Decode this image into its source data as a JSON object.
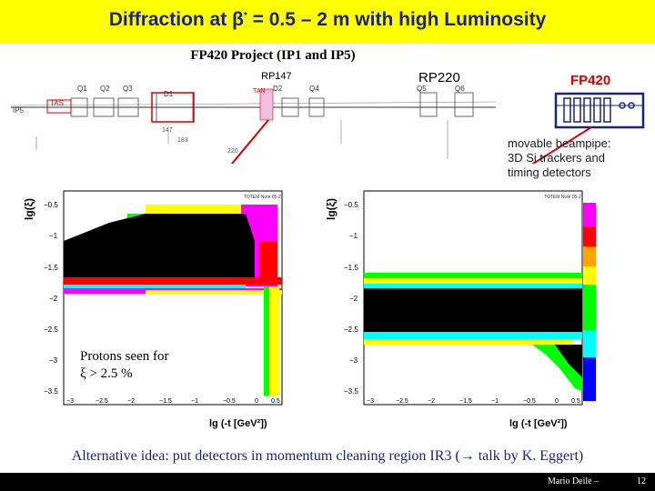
{
  "title": {
    "prefix": "Diffraction at ",
    "beta": "β",
    "star": "*",
    "suffix": " = 0.5 – 2 m with high Luminosity"
  },
  "subtitle": "FP420 Project (IP1 and IP5)",
  "beamline": {
    "rp147": "RP147",
    "rp220": "RP220",
    "fp420": "FP420",
    "elements": [
      "Q1",
      "Q2",
      "Q3",
      "D1",
      "TAN",
      "D2",
      "Q4",
      "Q5",
      "Q6",
      "TAS",
      "IP5"
    ],
    "distances": [
      "147",
      "183",
      "220"
    ]
  },
  "note": [
    "movable beampipe:",
    "3D Si trackers and",
    "timing detectors"
  ],
  "plot_left": {
    "ylabel": "lg(ξ)",
    "xlabel": "lg (-t  [GeV²])",
    "inset": "TOTEM Note 05-2",
    "yticks": [
      "−0.5",
      "−1",
      "−1.5",
      "−2",
      "−2.5",
      "−3",
      "−3.5"
    ],
    "xticks": [
      "−3",
      "−2.5",
      "−2",
      "−1.5",
      "−1",
      "−0.5",
      "0",
      "0.5"
    ],
    "caption": [
      "Protons seen for",
      "ξ > 2.5 %"
    ]
  },
  "plot_right": {
    "ylabel": "lg(ξ)",
    "xlabel": "lg (-t  [GeV²])",
    "inset": "TOTEM Note 05-2",
    "yticks": [
      "−0.5",
      "−1",
      "−1.5",
      "−2",
      "−2.5",
      "−3",
      "−3.5"
    ],
    "xticks": [
      "−3",
      "−2.5",
      "−2",
      "−1.5",
      "−1",
      "−0.5",
      "0",
      "0.5"
    ]
  },
  "colorbar": [
    "#ff00ff",
    "#ff0000",
    "#ffa500",
    "#ffff00",
    "#00ff00",
    "#00ffff",
    "#0000ff"
  ],
  "footer": "Alternative idea: put detectors in momentum cleaning region IR3 (→ talk by K. Eggert)",
  "author": "Mario Deile  –",
  "slide_number": "12"
}
